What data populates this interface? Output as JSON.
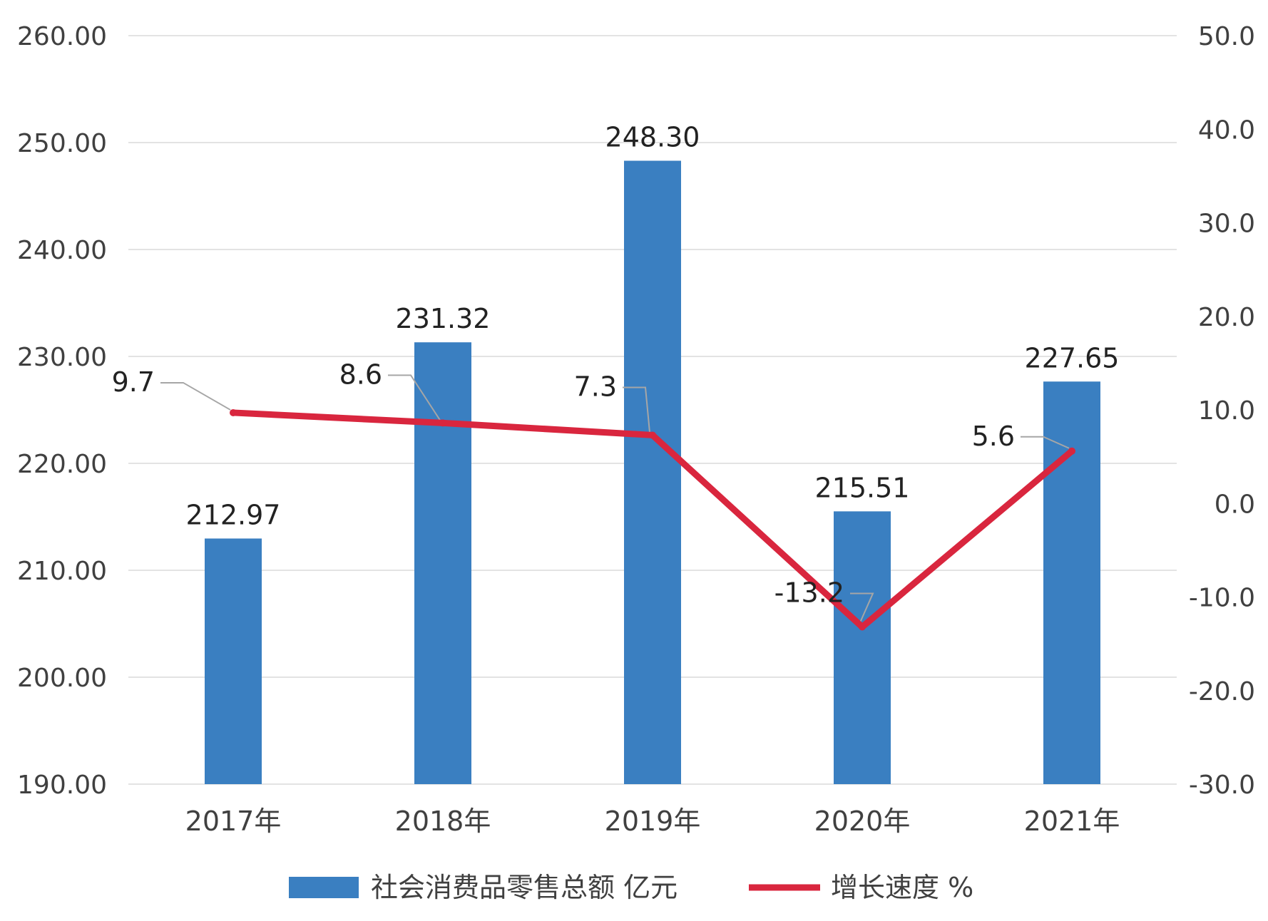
{
  "chart_data": {
    "type": "bar",
    "categories": [
      "2017年",
      "2018年",
      "2019年",
      "2020年",
      "2021年"
    ],
    "series": [
      {
        "name": "社会消费品零售总额 亿元",
        "type": "bar",
        "axis": "left",
        "color": "#3a7fc1",
        "values": [
          212.97,
          231.32,
          248.3,
          215.51,
          227.65
        ],
        "labels": [
          "212.97",
          "231.32",
          "248.30",
          "215.51",
          "227.65"
        ]
      },
      {
        "name": "增长速度 %",
        "type": "line",
        "axis": "right",
        "color": "#d9263e",
        "values": [
          9.7,
          8.6,
          7.3,
          -13.2,
          5.6
        ],
        "labels": [
          "9.7",
          "8.6",
          "7.3",
          "-13.2",
          "5.6"
        ]
      }
    ],
    "y_left": {
      "ylim": [
        190,
        260
      ],
      "ticks": [
        190,
        200,
        210,
        220,
        230,
        240,
        250,
        260
      ],
      "tick_labels": [
        "190.00",
        "200.00",
        "210.00",
        "220.00",
        "230.00",
        "240.00",
        "250.00",
        "260.00"
      ]
    },
    "y_right": {
      "ylim": [
        -30,
        50
      ],
      "ticks": [
        -30,
        -20,
        -10,
        0,
        10,
        20,
        30,
        40,
        50
      ],
      "tick_labels": [
        "-30.0",
        "-20.0",
        "-10.0",
        "0.0",
        "10.0",
        "20.0",
        "30.0",
        "40.0",
        "50.0"
      ]
    },
    "grid": true,
    "legend": "bottom"
  }
}
